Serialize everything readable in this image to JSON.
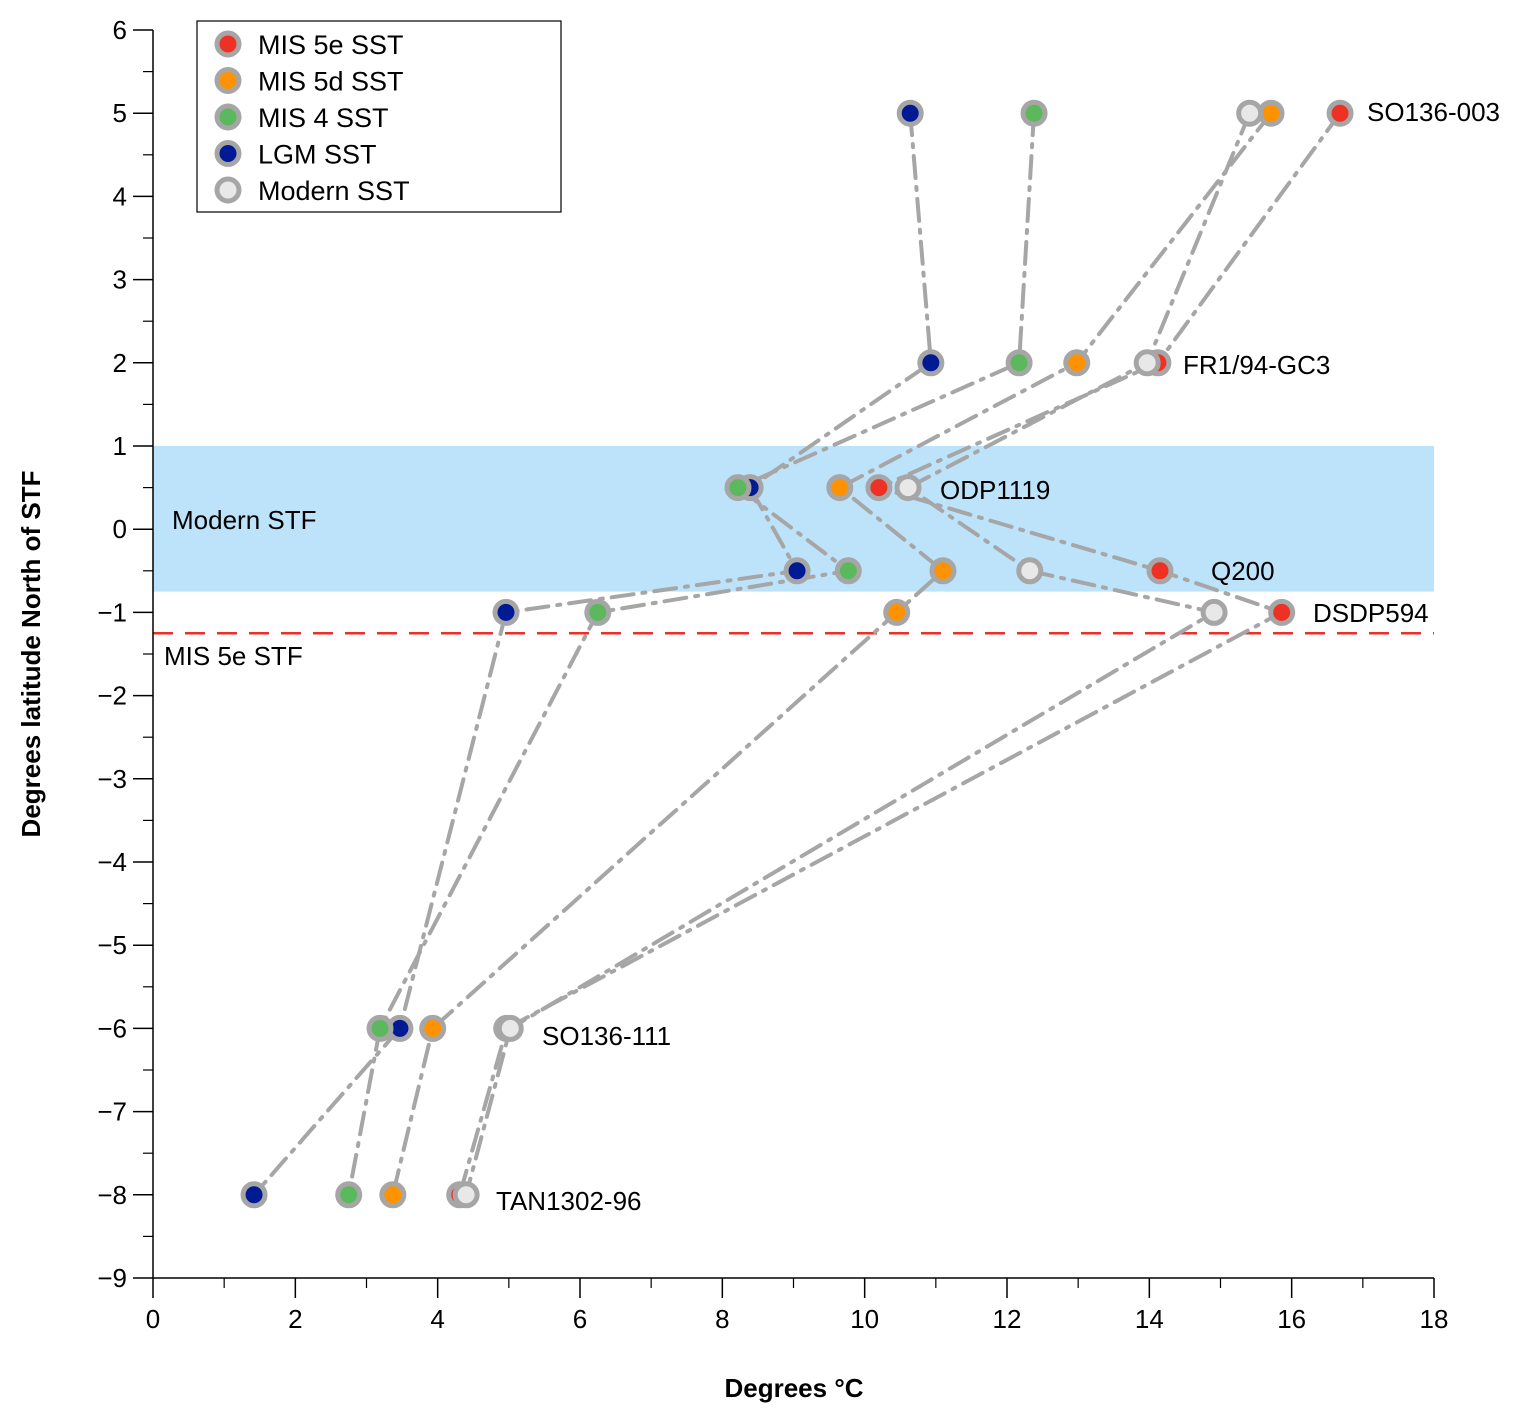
{
  "chart_data": {
    "type": "scatter",
    "title": "",
    "xlabel": "Degrees °C",
    "ylabel": "Degrees latitude North of STF",
    "xlim": [
      0,
      18
    ],
    "ylim": [
      -9,
      6
    ],
    "x_ticks": [
      0,
      2,
      4,
      6,
      8,
      10,
      12,
      14,
      16,
      18
    ],
    "x_minor_ticks": [
      1,
      3,
      5,
      7,
      9,
      11,
      13,
      15,
      17
    ],
    "y_ticks": [
      6,
      5,
      4,
      3,
      2,
      1,
      0,
      -1,
      -2,
      -3,
      -4,
      -5,
      -6,
      -7,
      -8,
      -9
    ],
    "y_minor_ticks": [
      5.5,
      4.5,
      3.5,
      2.5,
      1.5,
      0.5,
      -0.5,
      -1.5,
      -2.5,
      -3.5,
      -4.5,
      -5.5,
      -6.5,
      -7.5,
      -8.5
    ],
    "grid": false,
    "legend_position": "top-left",
    "stations": [
      {
        "name": "SO136-003",
        "lat": 5
      },
      {
        "name": "FR1/94-GC3",
        "lat": 2
      },
      {
        "name": "ODP1119",
        "lat": 0.5
      },
      {
        "name": "Q200",
        "lat": -0.5
      },
      {
        "name": "DSDP594",
        "lat": -1
      },
      {
        "name": "SO136-111",
        "lat": -6
      },
      {
        "name": "TAN1302-96",
        "lat": -8
      }
    ],
    "series": [
      {
        "name": "MIS 5e SST",
        "color": "#ee3124",
        "line_style": "dash-dot",
        "points": [
          [
            16.68,
            5
          ],
          [
            14.12,
            2
          ],
          [
            10.2,
            0.5
          ],
          [
            14.15,
            -0.5
          ],
          [
            15.86,
            -1
          ],
          [
            4.97,
            -6
          ],
          [
            4.31,
            -8
          ]
        ]
      },
      {
        "name": "MIS 5d SST",
        "color": "#ff9200",
        "line_style": "dash-dot",
        "points": [
          [
            15.71,
            5
          ],
          [
            12.98,
            2
          ],
          [
            9.65,
            0.5
          ],
          [
            11.1,
            -0.5
          ],
          [
            10.45,
            -1
          ],
          [
            3.93,
            -6
          ],
          [
            3.37,
            -8
          ]
        ]
      },
      {
        "name": "MIS 4 SST",
        "color": "#5cb85c",
        "line_style": "dash-dot",
        "points": [
          [
            12.38,
            5
          ],
          [
            12.17,
            2
          ],
          [
            8.22,
            0.5
          ],
          [
            9.77,
            -0.5
          ],
          [
            6.25,
            -1
          ],
          [
            3.19,
            -6
          ],
          [
            2.75,
            -8
          ]
        ]
      },
      {
        "name": "LGM SST",
        "color": "#001a94",
        "line_style": "dash-dot",
        "points": [
          [
            10.64,
            5
          ],
          [
            10.93,
            2
          ],
          [
            8.39,
            0.5
          ],
          [
            9.05,
            -0.5
          ],
          [
            4.96,
            -1
          ],
          [
            3.47,
            -6
          ],
          [
            1.42,
            -8
          ]
        ]
      },
      {
        "name": "Modern SST",
        "color": "#e8e8e8",
        "line_style": "dash-dot",
        "points": [
          [
            15.41,
            5
          ],
          [
            13.97,
            2
          ],
          [
            10.61,
            0.5
          ],
          [
            12.32,
            -0.5
          ],
          [
            14.91,
            -1
          ],
          [
            5.02,
            -6
          ],
          [
            4.4,
            -8
          ]
        ]
      }
    ],
    "annotations": [
      {
        "type": "band",
        "label": "Modern STF",
        "y_range": [
          -0.75,
          1.0
        ],
        "color": "#bde3fb"
      },
      {
        "type": "hline",
        "label": "MIS 5e STF",
        "y": -1.25,
        "color": "#ee3124",
        "style": "dashed"
      }
    ],
    "marker_edge_color": "#a6a6a6",
    "line_color": "#a6a6a6"
  }
}
